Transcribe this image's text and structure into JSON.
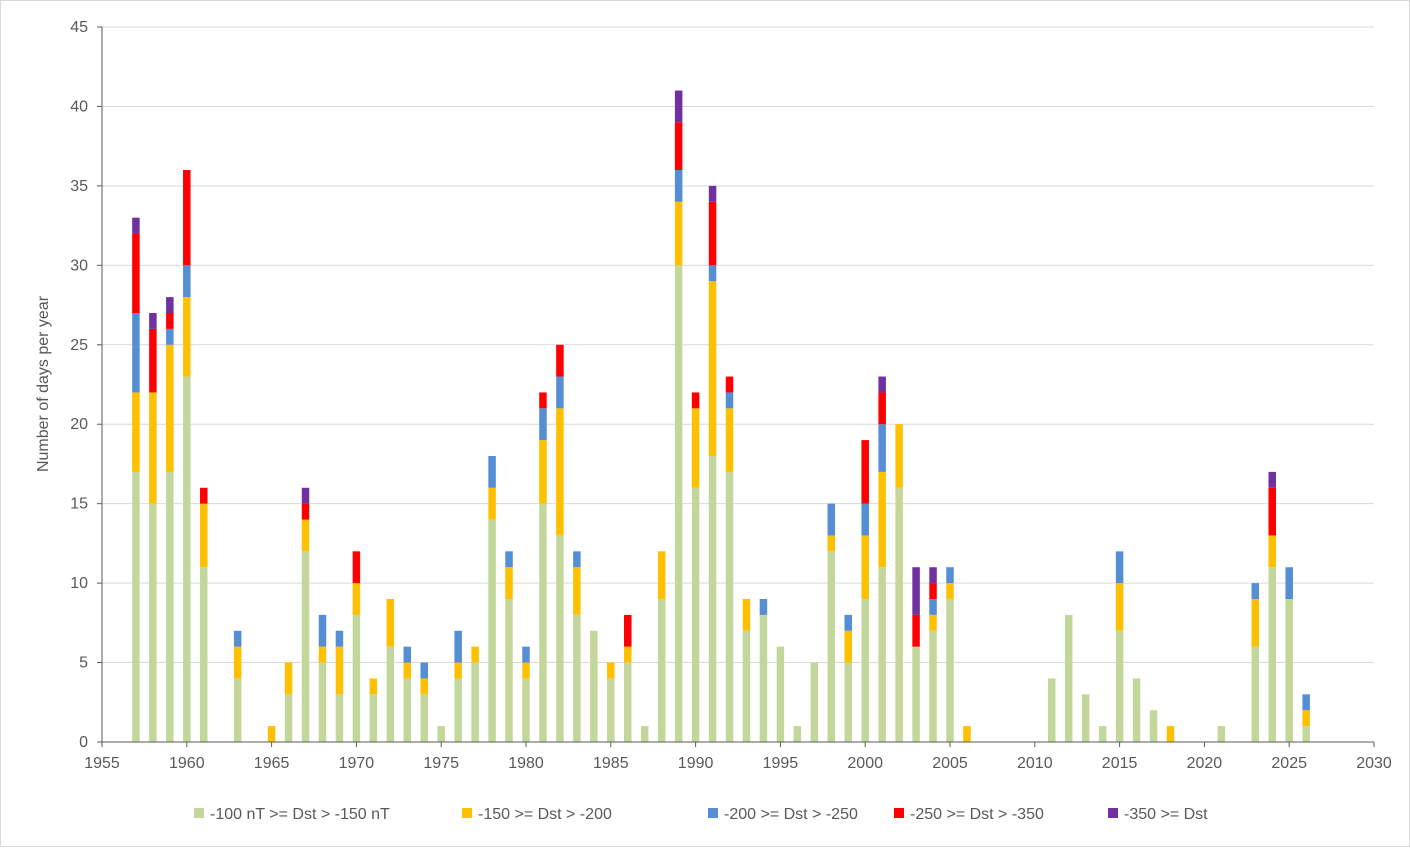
{
  "chart_data": {
    "type": "bar",
    "stacked": true,
    "title": "",
    "xlabel": "",
    "ylabel": "Number of days per year",
    "xlim": [
      1955,
      2030
    ],
    "ylim": [
      0,
      45
    ],
    "xticks": [
      1955,
      1960,
      1965,
      1970,
      1975,
      1980,
      1985,
      1990,
      1995,
      2000,
      2005,
      2010,
      2015,
      2020,
      2025,
      2030
    ],
    "yticks": [
      0,
      5,
      10,
      15,
      20,
      25,
      30,
      35,
      40,
      45
    ],
    "grid": "horizontal",
    "legend": "bottom",
    "x": [
      1957,
      1958,
      1959,
      1960,
      1961,
      1963,
      1965,
      1966,
      1967,
      1968,
      1969,
      1970,
      1971,
      1972,
      1973,
      1974,
      1975,
      1976,
      1977,
      1978,
      1979,
      1980,
      1981,
      1982,
      1983,
      1984,
      1985,
      1986,
      1987,
      1988,
      1989,
      1990,
      1991,
      1992,
      1993,
      1994,
      1995,
      1996,
      1997,
      1998,
      1999,
      2000,
      2001,
      2002,
      2003,
      2004,
      2005,
      2006,
      2011,
      2012,
      2013,
      2014,
      2015,
      2016,
      2017,
      2018,
      2021,
      2023,
      2024,
      2025,
      2026
    ],
    "series": [
      {
        "name": "-100 nT >= Dst > -150 nT",
        "color": "#c4d79b",
        "values": [
          17,
          15,
          17,
          23,
          11,
          4,
          0,
          3,
          12,
          5,
          3,
          8,
          3,
          6,
          4,
          3,
          1,
          4,
          5,
          14,
          9,
          4,
          15,
          13,
          8,
          7,
          4,
          5,
          1,
          9,
          30,
          16,
          18,
          17,
          7,
          8,
          6,
          1,
          5,
          12,
          5,
          9,
          11,
          16,
          6,
          7,
          9,
          0,
          4,
          8,
          3,
          1,
          7,
          4,
          2,
          0,
          1,
          6,
          11,
          9,
          1
        ]
      },
      {
        "name": "-150 >= Dst > -200",
        "color": "#ffc000",
        "values": [
          5,
          7,
          8,
          5,
          4,
          2,
          1,
          2,
          2,
          1,
          3,
          2,
          1,
          3,
          1,
          1,
          0,
          1,
          1,
          2,
          2,
          1,
          4,
          8,
          3,
          0,
          1,
          1,
          0,
          3,
          4,
          5,
          11,
          4,
          2,
          0,
          0,
          0,
          0,
          1,
          2,
          4,
          6,
          4,
          0,
          1,
          1,
          1,
          0,
          0,
          0,
          0,
          3,
          0,
          0,
          1,
          0,
          3,
          2,
          0,
          1
        ]
      },
      {
        "name": "-200 >= Dst > -250",
        "color": "#558ed5",
        "values": [
          5,
          0,
          1,
          2,
          0,
          1,
          0,
          0,
          0,
          2,
          1,
          0,
          0,
          0,
          1,
          1,
          0,
          2,
          0,
          2,
          1,
          1,
          2,
          2,
          1,
          0,
          0,
          0,
          0,
          0,
          2,
          0,
          1,
          1,
          0,
          1,
          0,
          0,
          0,
          2,
          1,
          2,
          3,
          0,
          0,
          1,
          1,
          0,
          0,
          0,
          0,
          0,
          2,
          0,
          0,
          0,
          0,
          1,
          0,
          2,
          1
        ]
      },
      {
        "name": "-250 >= Dst > -350",
        "color": "#ff0000",
        "values": [
          5,
          4,
          1,
          6,
          1,
          0,
          0,
          0,
          1,
          0,
          0,
          2,
          0,
          0,
          0,
          0,
          0,
          0,
          0,
          0,
          0,
          0,
          1,
          2,
          0,
          0,
          0,
          2,
          0,
          0,
          3,
          1,
          4,
          1,
          0,
          0,
          0,
          0,
          0,
          0,
          0,
          4,
          2,
          0,
          2,
          1,
          0,
          0,
          0,
          0,
          0,
          0,
          0,
          0,
          0,
          0,
          0,
          0,
          3,
          0,
          0
        ]
      },
      {
        "name": "-350 >= Dst",
        "color": "#7030a0",
        "values": [
          1,
          1,
          1,
          0,
          0,
          0,
          0,
          0,
          1,
          0,
          0,
          0,
          0,
          0,
          0,
          0,
          0,
          0,
          0,
          0,
          0,
          0,
          0,
          0,
          0,
          0,
          0,
          0,
          0,
          0,
          2,
          0,
          1,
          0,
          0,
          0,
          0,
          0,
          0,
          0,
          0,
          0,
          1,
          0,
          3,
          1,
          0,
          0,
          0,
          0,
          0,
          0,
          0,
          0,
          0,
          0,
          0,
          0,
          1,
          0,
          0
        ]
      }
    ]
  }
}
